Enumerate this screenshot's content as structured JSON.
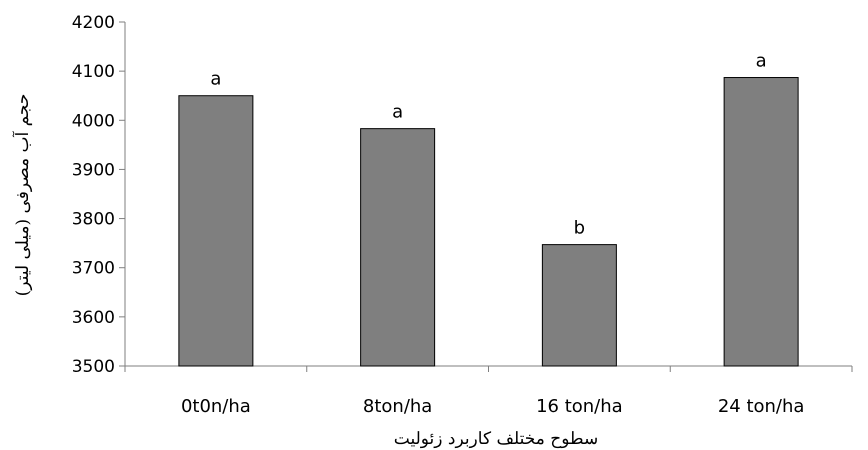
{
  "chart_data": {
    "type": "bar",
    "categories": [
      "0t0n/ha",
      "8ton/ha",
      "16 ton/ha",
      "24 ton/ha"
    ],
    "values": [
      4050,
      3983,
      3747,
      4087
    ],
    "data_labels": [
      "a",
      "a",
      "b",
      "a"
    ],
    "xlabel": "سطوح مختلف کاربرد زئولیت",
    "ylabel": "حجم آب مصرفی (میلی لیتر)",
    "ylim": [
      3500,
      4200
    ],
    "yticks": [
      3500,
      3600,
      3700,
      3800,
      3900,
      4000,
      4100,
      4200
    ],
    "grid": false,
    "legend": "none",
    "bar_color": "#7f7f7f"
  }
}
